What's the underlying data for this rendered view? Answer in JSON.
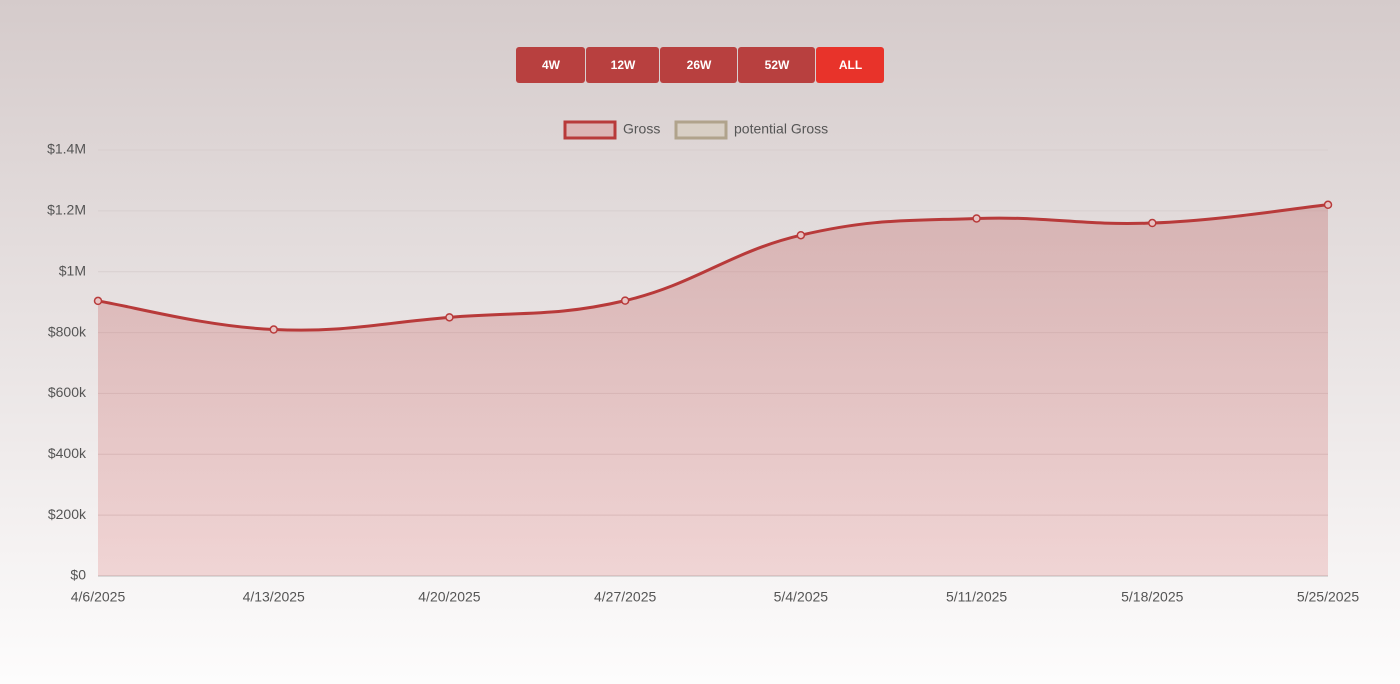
{
  "buttons": [
    "4W",
    "12W",
    "26W",
    "52W",
    "ALL"
  ],
  "active_button": 4,
  "chart_data": {
    "type": "area",
    "categories": [
      "4/6/2025",
      "4/13/2025",
      "4/20/2025",
      "4/27/2025",
      "5/4/2025",
      "5/11/2025",
      "5/18/2025",
      "5/25/2025"
    ],
    "series": [
      {
        "name": "Gross",
        "color": "#b83a3a",
        "values": [
          904000,
          810000,
          850000,
          905000,
          1120000,
          1175000,
          1160000,
          1220000
        ]
      },
      {
        "name": "potential Gross",
        "color": "#b0a38c",
        "values": [
          null,
          null,
          null,
          null,
          null,
          null,
          null,
          null
        ]
      }
    ],
    "ylim": [
      0,
      1400000
    ],
    "yticks": [
      {
        "value": 0,
        "label": "$0"
      },
      {
        "value": 200000,
        "label": "$200k"
      },
      {
        "value": 400000,
        "label": "$400k"
      },
      {
        "value": 600000,
        "label": "$600k"
      },
      {
        "value": 800000,
        "label": "$800k"
      },
      {
        "value": 1000000,
        "label": "$1M"
      },
      {
        "value": 1200000,
        "label": "$1.2M"
      },
      {
        "value": 1400000,
        "label": "$1.4M"
      }
    ],
    "grid": true,
    "legend": "top"
  }
}
